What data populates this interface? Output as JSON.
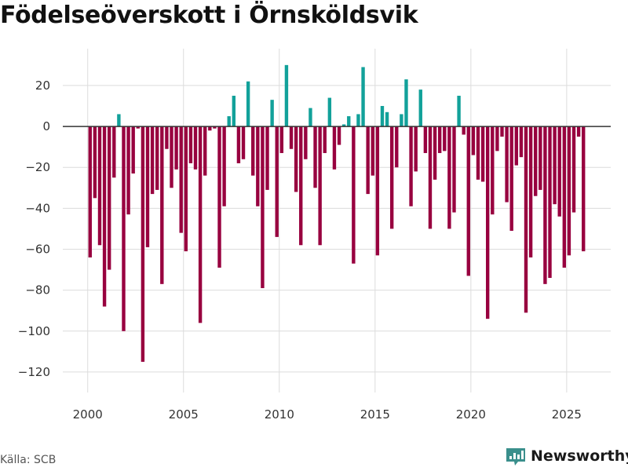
{
  "colors": {
    "positive": "#12a19a",
    "negative": "#98003f",
    "brand": "#3a8f8c"
  },
  "source": "Källa: SCB",
  "brand_name": "Newsworthy",
  "chart_data": {
    "type": "bar",
    "title": "Födelseöverskott i Örnsköldsvik",
    "xlabel": "",
    "ylabel": "",
    "xlim": [
      1998.7,
      2027.3
    ],
    "ylim": [
      -130,
      38
    ],
    "xticks": [
      2000,
      2005,
      2010,
      2015,
      2020,
      2025
    ],
    "yticks": [
      20,
      0,
      -20,
      -40,
      -60,
      -80,
      -100,
      -120
    ],
    "ytick_labels": [
      "20",
      "0",
      "−20",
      "−40",
      "−60",
      "−80",
      "−100",
      "−120"
    ],
    "x_start": 2000.125,
    "x_step": 0.25,
    "values": [
      -64,
      -35,
      -58,
      -88,
      -70,
      -25,
      6,
      -100,
      -43,
      -23,
      -1,
      -115,
      -59,
      -33,
      -31,
      -77,
      -11,
      -30,
      -21,
      -52,
      -61,
      -18,
      -21,
      -96,
      -24,
      -2,
      -1,
      -69,
      -39,
      5,
      15,
      -18,
      -16,
      22,
      -24,
      -39,
      -79,
      -31,
      13,
      -54,
      -13,
      30,
      -11,
      -32,
      -58,
      -16,
      9,
      -30,
      -58,
      -13,
      14,
      -21,
      -9,
      1,
      5,
      -67,
      6,
      29,
      -33,
      -24,
      -63,
      10,
      7,
      -50,
      -20,
      6,
      23,
      -39,
      -22,
      18,
      -13,
      -50,
      -26,
      -13,
      -12,
      -50,
      -42,
      15,
      -4,
      -73,
      -14,
      -26,
      -27,
      -94,
      -43,
      -12,
      -5,
      -37,
      -51,
      -19,
      -15,
      -91,
      -64,
      -34,
      -31,
      -77,
      -74,
      -38,
      -44,
      -69,
      -63,
      -42,
      -5,
      -61
    ]
  }
}
